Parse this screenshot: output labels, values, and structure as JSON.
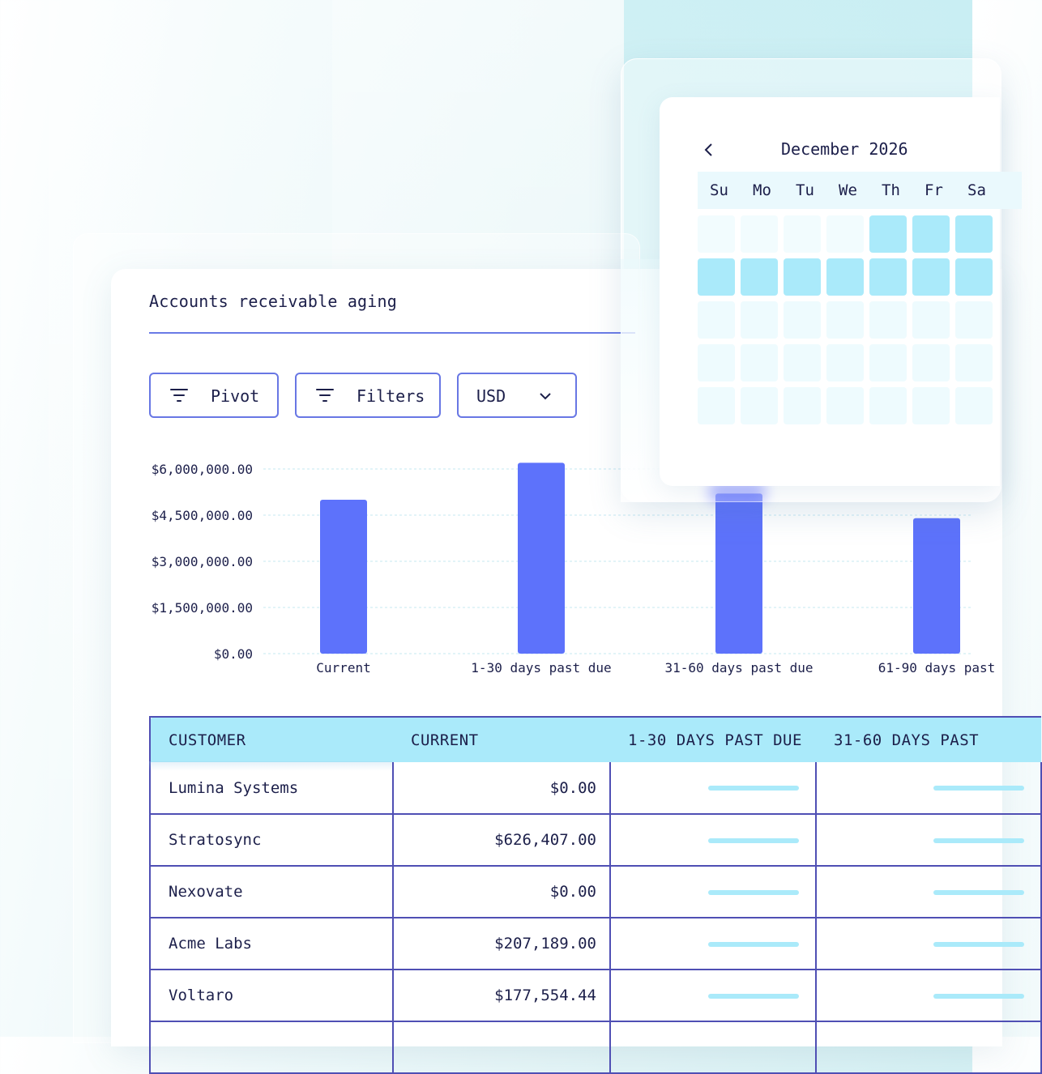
{
  "report": {
    "title": "Accounts receivable aging",
    "toolbar": {
      "pivot_label": "Pivot",
      "filters_label": "Filters",
      "currency_label": "USD"
    }
  },
  "chart_data": {
    "type": "bar",
    "categories": [
      "Current",
      "1-30 days past due",
      "31-60 days past due",
      "61-90 days past"
    ],
    "values": [
      5000000,
      6200000,
      5200000,
      4400000
    ],
    "y_ticks": [
      "$6,000,000.00",
      "$4,500,000.00",
      "$3,000,000.00",
      "$1,500,000.00",
      "$0.00"
    ],
    "ylim": [
      0,
      6000000
    ],
    "grid": true,
    "colors": {
      "bar": "#5d72fb"
    }
  },
  "table": {
    "columns": [
      "CUSTOMER",
      "CURRENT",
      "1-30 DAYS PAST DUE",
      "31-60 DAYS PAST"
    ],
    "rows": [
      {
        "customer": "Lumina Systems",
        "current": "$0.00"
      },
      {
        "customer": "Stratosync",
        "current": "$626,407.00"
      },
      {
        "customer": "Nexovate",
        "current": "$0.00"
      },
      {
        "customer": "Acme Labs",
        "current": "$207,189.00"
      },
      {
        "customer": "Voltaro",
        "current": "$177,554.44"
      },
      {
        "customer": "",
        "current": ""
      }
    ]
  },
  "calendar": {
    "month_label": "December 2026",
    "weekdays": [
      "Su",
      "Mo",
      "Tu",
      "We",
      "Th",
      "Fr",
      "Sa"
    ],
    "icons": {
      "prev": "chevron-left-icon"
    }
  },
  "colors": {
    "accent": "#6877e4",
    "border": "#4f4fb4",
    "header_bg": "#aaeafa",
    "bar": "#5d72fb"
  }
}
